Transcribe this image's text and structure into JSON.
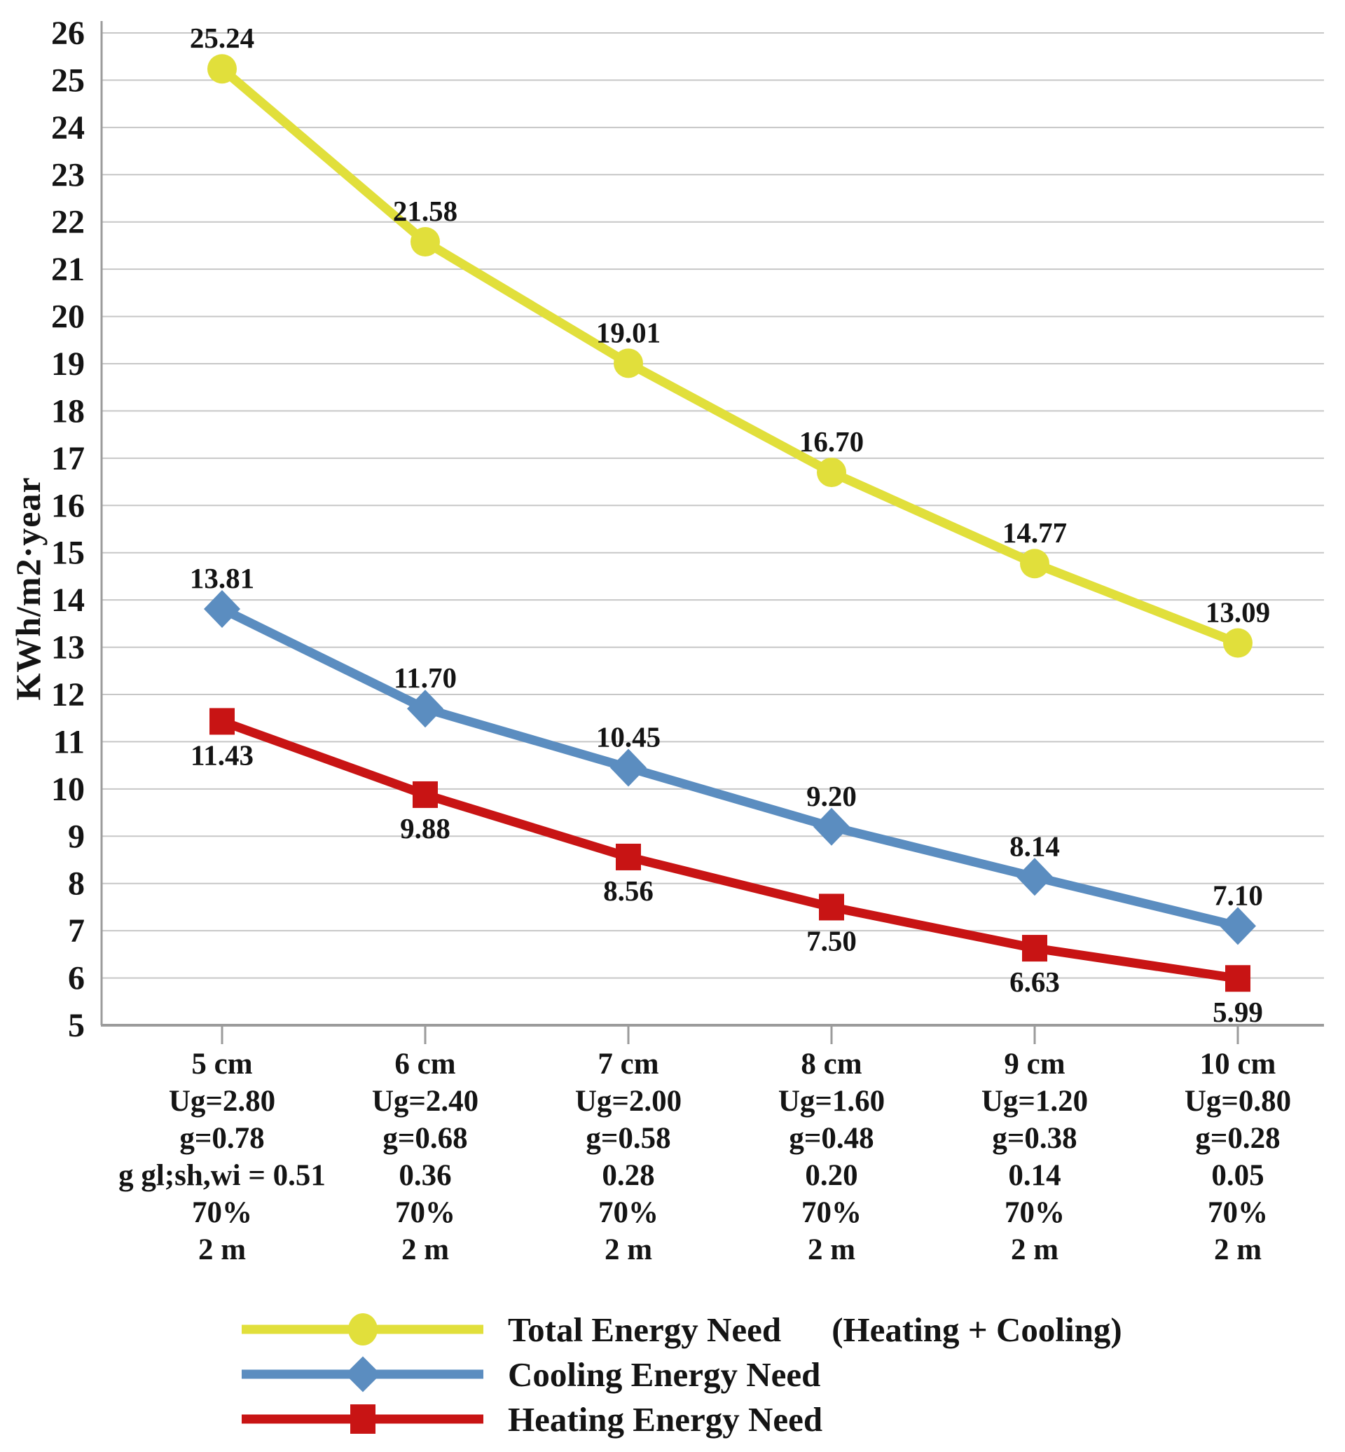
{
  "chart_data": {
    "type": "line",
    "title": "",
    "ylabel": "KWh/m2·year",
    "grid": true,
    "legend_position": "bottom",
    "y_axis": {
      "min": 5,
      "max": 26,
      "step": 1,
      "tick_labels": [
        "5",
        "6",
        "7",
        "8",
        "9",
        "10",
        "11",
        "12",
        "13",
        "14",
        "15",
        "16",
        "17",
        "18",
        "19",
        "20",
        "21",
        "22",
        "23",
        "24",
        "25",
        "26"
      ]
    },
    "categories": [
      {
        "lines": [
          "5 cm",
          "Ug=2.80",
          "g=0.78",
          "g gl;sh,wi = 0.51",
          "70%",
          "2 m"
        ]
      },
      {
        "lines": [
          "6 cm",
          "Ug=2.40",
          "g=0.68",
          "0.36",
          "70%",
          "2 m"
        ]
      },
      {
        "lines": [
          "7 cm",
          "Ug=2.00",
          "g=0.58",
          "0.28",
          "70%",
          "2 m"
        ]
      },
      {
        "lines": [
          "8 cm",
          "Ug=1.60",
          "g=0.48",
          "0.20",
          "70%",
          "2 m"
        ]
      },
      {
        "lines": [
          "9 cm",
          "Ug=1.20",
          "g=0.38",
          "0.14",
          "70%",
          "2 m"
        ]
      },
      {
        "lines": [
          "10 cm",
          "Ug=0.80",
          "g=0.28",
          "0.05",
          "70%",
          "2 m"
        ]
      }
    ],
    "series": [
      {
        "name": "Total Energy Need",
        "name_suffix": "(Heating + Cooling)",
        "marker": "circle",
        "color": "#e1df3b",
        "label_position": "above",
        "values": [
          25.24,
          21.58,
          19.01,
          16.7,
          14.77,
          13.09
        ],
        "value_labels": [
          "25.24",
          "21.58",
          "19.01",
          "16.70",
          "14.77",
          "13.09"
        ]
      },
      {
        "name": "Cooling Energy Need",
        "marker": "diamond",
        "color": "#5b8dc0",
        "label_position": "above",
        "values": [
          13.81,
          11.7,
          10.45,
          9.2,
          8.14,
          7.1
        ],
        "value_labels": [
          "13.81",
          "11.70",
          "10.45",
          "9.20",
          "8.14",
          "7.10"
        ]
      },
      {
        "name": "Heating Energy Need",
        "marker": "square",
        "color": "#c81414",
        "label_position": "below",
        "values": [
          11.43,
          9.88,
          8.56,
          7.5,
          6.63,
          5.99
        ],
        "value_labels": [
          "11.43",
          "9.88",
          "8.56",
          "7.50",
          "6.63",
          "5.99"
        ]
      }
    ]
  },
  "colors": {
    "background": "#ffffff",
    "gridline": "#c7c7c7",
    "axis": "#9b9b9b",
    "text": "#141414"
  }
}
